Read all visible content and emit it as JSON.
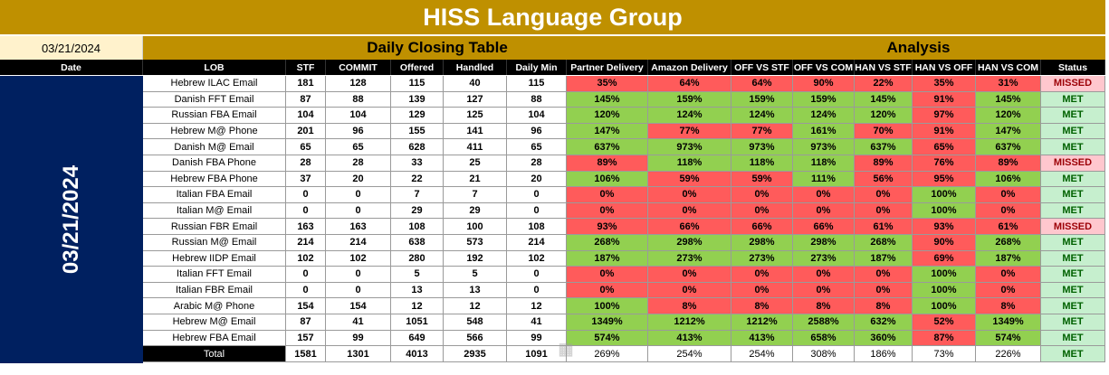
{
  "title": "HISS Language Group",
  "date": "03/21/2024",
  "section_daily": "Daily Closing Table",
  "section_analysis": "Analysis",
  "headers": [
    "Date",
    "LOB",
    "STF",
    "COMMIT",
    "Offered",
    "Handled",
    "Daily Min",
    "Partner Delivery",
    "Amazon Delivery",
    "OFF VS STF",
    "OFF VS COM",
    "HAN VS STF",
    "HAN VS OFF",
    "HAN VS COM",
    "Status"
  ],
  "rows": [
    {
      "lob": "Hebrew ILAC Email",
      "stf": "181",
      "commit": "128",
      "offered": "115",
      "handled": "40",
      "dmin": "115",
      "pd": "35%",
      "ad": "64%",
      "ovs": "64%",
      "ovc": "90%",
      "hvs": "22%",
      "hvo": "35%",
      "hvc": "31%",
      "status": "MISSED"
    },
    {
      "lob": "Danish FFT Email",
      "stf": "87",
      "commit": "88",
      "offered": "139",
      "handled": "127",
      "dmin": "88",
      "pd": "145%",
      "ad": "159%",
      "ovs": "159%",
      "ovc": "159%",
      "hvs": "145%",
      "hvo": "91%",
      "hvc": "145%",
      "status": "MET"
    },
    {
      "lob": "Russian FBA Email",
      "stf": "104",
      "commit": "104",
      "offered": "129",
      "handled": "125",
      "dmin": "104",
      "pd": "120%",
      "ad": "124%",
      "ovs": "124%",
      "ovc": "124%",
      "hvs": "120%",
      "hvo": "97%",
      "hvc": "120%",
      "status": "MET"
    },
    {
      "lob": "Hebrew M@ Phone",
      "stf": "201",
      "commit": "96",
      "offered": "155",
      "handled": "141",
      "dmin": "96",
      "pd": "147%",
      "ad": "77%",
      "ovs": "77%",
      "ovc": "161%",
      "hvs": "70%",
      "hvo": "91%",
      "hvc": "147%",
      "status": "MET"
    },
    {
      "lob": "Danish M@ Email",
      "stf": "65",
      "commit": "65",
      "offered": "628",
      "handled": "411",
      "dmin": "65",
      "pd": "637%",
      "ad": "973%",
      "ovs": "973%",
      "ovc": "973%",
      "hvs": "637%",
      "hvo": "65%",
      "hvc": "637%",
      "status": "MET"
    },
    {
      "lob": "Danish FBA Phone",
      "stf": "28",
      "commit": "28",
      "offered": "33",
      "handled": "25",
      "dmin": "28",
      "pd": "89%",
      "ad": "118%",
      "ovs": "118%",
      "ovc": "118%",
      "hvs": "89%",
      "hvo": "76%",
      "hvc": "89%",
      "status": "MISSED"
    },
    {
      "lob": "Hebrew FBA Phone",
      "stf": "37",
      "commit": "20",
      "offered": "22",
      "handled": "21",
      "dmin": "20",
      "pd": "106%",
      "ad": "59%",
      "ovs": "59%",
      "ovc": "111%",
      "hvs": "56%",
      "hvo": "95%",
      "hvc": "106%",
      "status": "MET"
    },
    {
      "lob": "Italian FBA Email",
      "stf": "0",
      "commit": "0",
      "offered": "7",
      "handled": "7",
      "dmin": "0",
      "pd": "0%",
      "ad": "0%",
      "ovs": "0%",
      "ovc": "0%",
      "hvs": "0%",
      "hvo": "100%",
      "hvc": "0%",
      "status": "MET"
    },
    {
      "lob": "Italian M@ Email",
      "stf": "0",
      "commit": "0",
      "offered": "29",
      "handled": "29",
      "dmin": "0",
      "pd": "0%",
      "ad": "0%",
      "ovs": "0%",
      "ovc": "0%",
      "hvs": "0%",
      "hvo": "100%",
      "hvc": "0%",
      "status": "MET"
    },
    {
      "lob": "Russian FBR Email",
      "stf": "163",
      "commit": "163",
      "offered": "108",
      "handled": "100",
      "dmin": "108",
      "pd": "93%",
      "ad": "66%",
      "ovs": "66%",
      "ovc": "66%",
      "hvs": "61%",
      "hvo": "93%",
      "hvc": "61%",
      "status": "MISSED"
    },
    {
      "lob": "Russian M@ Email",
      "stf": "214",
      "commit": "214",
      "offered": "638",
      "handled": "573",
      "dmin": "214",
      "pd": "268%",
      "ad": "298%",
      "ovs": "298%",
      "ovc": "298%",
      "hvs": "268%",
      "hvo": "90%",
      "hvc": "268%",
      "status": "MET"
    },
    {
      "lob": "Hebrew IIDP Email",
      "stf": "102",
      "commit": "102",
      "offered": "280",
      "handled": "192",
      "dmin": "102",
      "pd": "187%",
      "ad": "273%",
      "ovs": "273%",
      "ovc": "273%",
      "hvs": "187%",
      "hvo": "69%",
      "hvc": "187%",
      "status": "MET"
    },
    {
      "lob": "Italian FFT Email",
      "stf": "0",
      "commit": "0",
      "offered": "5",
      "handled": "5",
      "dmin": "0",
      "pd": "0%",
      "ad": "0%",
      "ovs": "0%",
      "ovc": "0%",
      "hvs": "0%",
      "hvo": "100%",
      "hvc": "0%",
      "status": "MET"
    },
    {
      "lob": "Italian FBR Email",
      "stf": "0",
      "commit": "0",
      "offered": "13",
      "handled": "13",
      "dmin": "0",
      "pd": "0%",
      "ad": "0%",
      "ovs": "0%",
      "ovc": "0%",
      "hvs": "0%",
      "hvo": "100%",
      "hvc": "0%",
      "status": "MET"
    },
    {
      "lob": "Arabic M@ Phone",
      "stf": "154",
      "commit": "154",
      "offered": "12",
      "handled": "12",
      "dmin": "12",
      "pd": "100%",
      "ad": "8%",
      "ovs": "8%",
      "ovc": "8%",
      "hvs": "8%",
      "hvo": "100%",
      "hvc": "8%",
      "status": "MET"
    },
    {
      "lob": "Hebrew M@ Email",
      "stf": "87",
      "commit": "41",
      "offered": "1051",
      "handled": "548",
      "dmin": "41",
      "pd": "1349%",
      "ad": "1212%",
      "ovs": "1212%",
      "ovc": "2588%",
      "hvs": "632%",
      "hvo": "52%",
      "hvc": "1349%",
      "status": "MET"
    },
    {
      "lob": "Hebrew FBA Email",
      "stf": "157",
      "commit": "99",
      "offered": "649",
      "handled": "566",
      "dmin": "99",
      "pd": "574%",
      "ad": "413%",
      "ovs": "413%",
      "ovc": "658%",
      "hvs": "360%",
      "hvo": "87%",
      "hvc": "574%",
      "status": "MET"
    }
  ],
  "total": {
    "lob": "Total",
    "stf": "1581",
    "commit": "1301",
    "offered": "4013",
    "handled": "2935",
    "dmin": "1091",
    "pd": "269%",
    "ad": "254%",
    "ovs": "254%",
    "ovc": "308%",
    "hvs": "186%",
    "hvo": "73%",
    "hvc": "226%",
    "status": "MET"
  },
  "colors": {
    "gold": "#bf9000",
    "navy": "#002060",
    "green": "#92d050",
    "red": "#ff5b5b",
    "met_bg": "#c6efce",
    "missed_bg": "#ffc7ce"
  }
}
